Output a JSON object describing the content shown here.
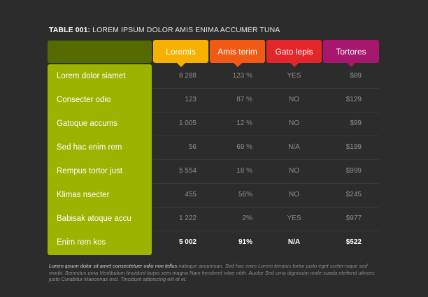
{
  "title": {
    "prefix": "TABLE 001:",
    "text": " LOREM IPSUM DOLOR AMIS ENIMA ACCUMER TUNA"
  },
  "columns": [
    "Loremis",
    "Amis terim",
    "Gato lepis",
    "Tortores"
  ],
  "rows": [
    {
      "label": "Lorem dolor siamet",
      "values": [
        "8 288",
        "123 %",
        "YES",
        "$89"
      ]
    },
    {
      "label": "Consecter odio",
      "values": [
        "123",
        "87 %",
        "NO",
        "$129"
      ]
    },
    {
      "label": "Gatoque accums",
      "values": [
        "1 005",
        "12 %",
        "NO",
        "$99"
      ]
    },
    {
      "label": "Sed hac enim rem",
      "values": [
        "56",
        "69 %",
        "N/A",
        "$199"
      ]
    },
    {
      "label": "Rempus tortor just",
      "values": [
        "5 554",
        "18 %",
        "NO",
        "$999"
      ]
    },
    {
      "label": "Klimas nsecter",
      "values": [
        "455",
        "56%",
        "NO",
        "$245"
      ]
    },
    {
      "label": "Babisak atoque accu",
      "values": [
        "1 222",
        "2%",
        "YES",
        "$977"
      ]
    },
    {
      "label": "Enim rem kos",
      "values": [
        "5 002",
        "91%",
        "N/A",
        "$522"
      ]
    }
  ],
  "footnote": {
    "lead": "Lorem ipsum dolor sit amet consectetuer odio non tellus",
    "body": " natoque accumsan. Sed hac enim Lorem tempus tortor justo eget sceler-isque sed morbi. Senectus urna Vestibulum tincidunt turpis sem magna Nam hendrerit vitae nibh. Auctor Sed urna dignissim male-suada eleifend ultrices justo Curabitur Maecenas orci. Tincidunt adipiscing elit et et."
  },
  "colors": {
    "background": "#2c2c2c",
    "label_column": "#9cb300",
    "corner": "#556b00",
    "col1": "#f7b000",
    "col2": "#f05a14",
    "col3": "#e3262a",
    "col4": "#a8176e"
  }
}
